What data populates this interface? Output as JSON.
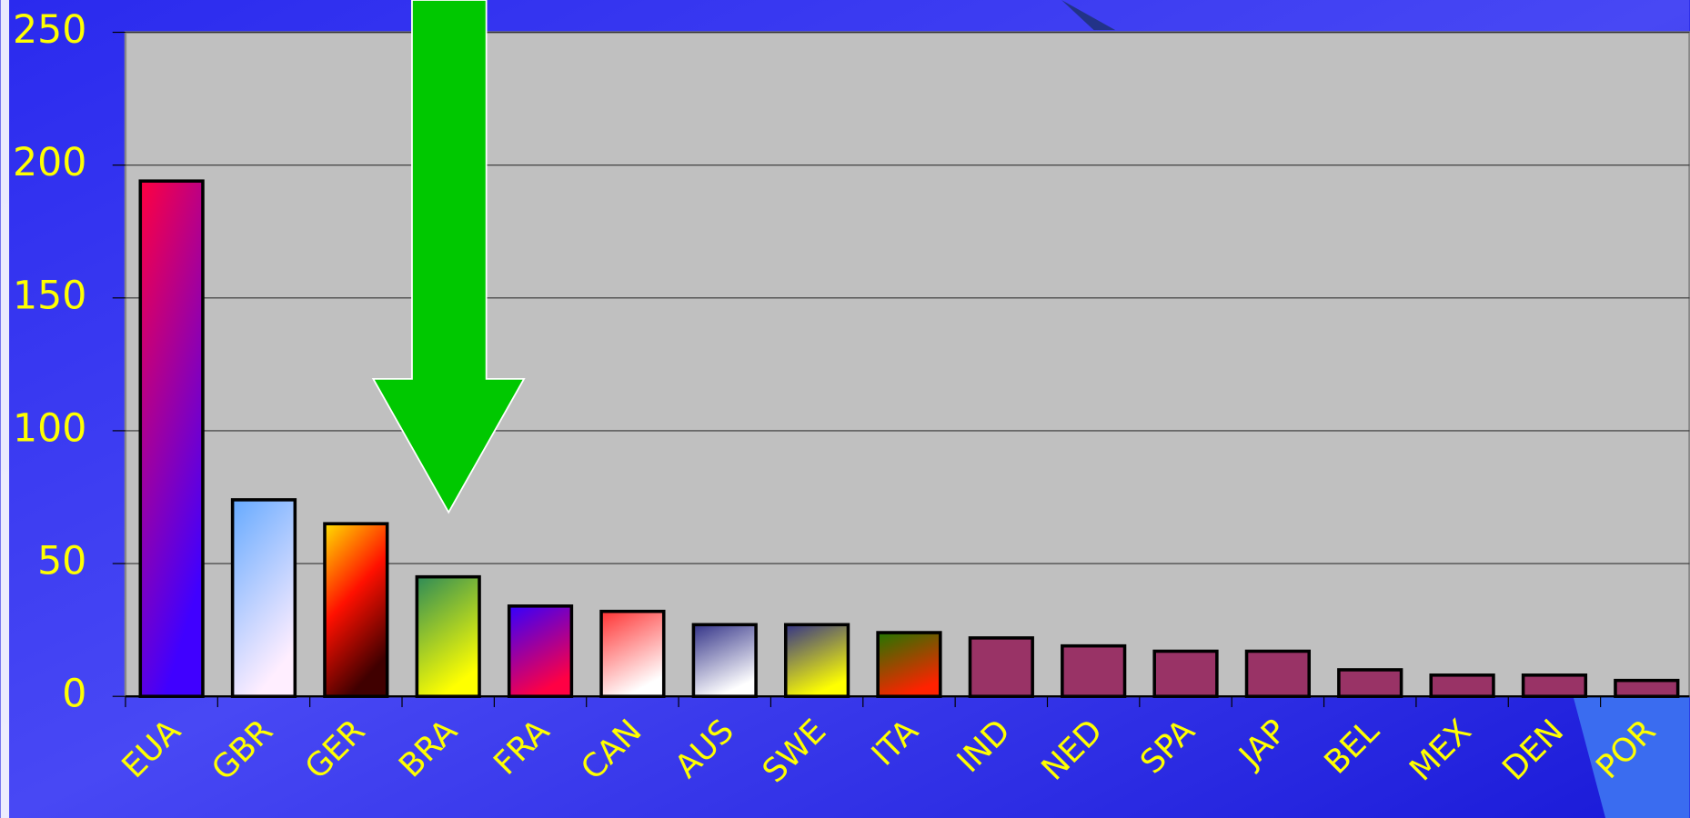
{
  "chart_data": {
    "type": "bar",
    "categories": [
      "EUA",
      "GBR",
      "GER",
      "BRA",
      "FRA",
      "CAN",
      "AUS",
      "SWE",
      "ITA",
      "IND",
      "NED",
      "SPA",
      "JAP",
      "BEL",
      "MEX",
      "DEN",
      "POR"
    ],
    "values": [
      194,
      74,
      65,
      45,
      34,
      32,
      27,
      27,
      24,
      22,
      19,
      17,
      17,
      10,
      8,
      8,
      6
    ],
    "colors": [
      [
        "#ff0040",
        "#4000ff"
      ],
      [
        "#66aaff",
        "#ffeeff"
      ],
      [
        "#ffe000",
        "#ff1000",
        "#400000"
      ],
      [
        "#2e8b57",
        "#ffff00"
      ],
      [
        "#3300ff",
        "#ff0044"
      ],
      [
        "#ff3333",
        "#ffffff"
      ],
      [
        "#333388",
        "#ffffff"
      ],
      [
        "#333388",
        "#ffff00"
      ],
      [
        "#227700",
        "#ff2200"
      ],
      [
        "#993366"
      ],
      [
        "#993366"
      ],
      [
        "#993366"
      ],
      [
        "#993366"
      ],
      [
        "#993366"
      ],
      [
        "#993366"
      ],
      [
        "#993366"
      ],
      [
        "#993366"
      ]
    ],
    "ylim": [
      0,
      250
    ],
    "yticks": [
      0,
      50,
      100,
      150,
      200,
      250
    ],
    "grid": true
  }
}
